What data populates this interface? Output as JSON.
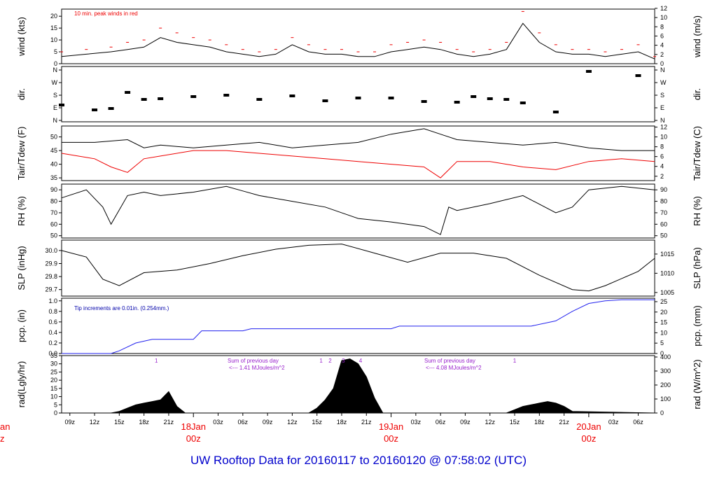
{
  "title": "UW Rooftop Data for 20160117  to  20160120 @ 07:58:02  (UTC)",
  "x_ticks": [
    "09z",
    "12z",
    "15z",
    "18z",
    "21z",
    "03z",
    "06z",
    "09z",
    "12z",
    "15z",
    "18z",
    "21z",
    "03z",
    "06z",
    "09z",
    "12z",
    "15z",
    "18z",
    "21z",
    "03z",
    "06z"
  ],
  "day_labels": [
    {
      "day": "18Jan",
      "hour": "00z"
    },
    {
      "day": "19Jan",
      "hour": "00z"
    },
    {
      "day": "20Jan",
      "hour": "00z"
    }
  ],
  "edge_labels": {
    "day_fragment": "an",
    "hour_fragment": "z"
  },
  "colors": {
    "black": "#000000",
    "red": "#ee0000",
    "blue": "#2222ee",
    "purple": "#9922cc",
    "title": "#0000cc"
  },
  "panels": {
    "wind": {
      "ylabel_left": "wind (kts)",
      "ylabel_right": "wind (m/s)",
      "left_ticks": [
        "0",
        "5",
        "10",
        "15",
        "20"
      ],
      "right_ticks": [
        "0",
        "2",
        "4",
        "6",
        "8",
        "10",
        "12"
      ],
      "note": "10 min. peak winds in red"
    },
    "dir": {
      "ylabel_left": "dir.",
      "ylabel_right": "dir.",
      "ticks": [
        "N",
        "E",
        "S",
        "W",
        "N"
      ]
    },
    "temp": {
      "ylabel_left": "Tair/Tdew (F)",
      "ylabel_right": "Tair/Tdew (C)",
      "left_ticks": [
        "35",
        "40",
        "45",
        "50"
      ],
      "right_ticks": [
        "2",
        "4",
        "6",
        "8",
        "10",
        "12"
      ]
    },
    "rh": {
      "ylabel_left": "RH (%)",
      "ylabel_right": "RH (%)",
      "ticks": [
        "50",
        "60",
        "70",
        "80",
        "90"
      ]
    },
    "slp": {
      "ylabel_left": "SLP (inHg)",
      "ylabel_right": "SLP (hPa)",
      "left_ticks": [
        "29.7",
        "29.8",
        "29.9",
        "30.0"
      ],
      "right_ticks": [
        "1005",
        "1010",
        "1015"
      ]
    },
    "pcp": {
      "ylabel_left": "pcp. (in)",
      "ylabel_right": "pcp. (mm)",
      "left_ticks": [
        "0.0",
        "0.2",
        "0.4",
        "0.6",
        "0.8",
        "1.0"
      ],
      "right_ticks": [
        "0",
        "5",
        "10",
        "15",
        "20",
        "25"
      ],
      "note": "Tip increments are 0.01in. (0.254mm.)"
    },
    "rad": {
      "ylabel_left": "rad(Lgly/hr)",
      "ylabel_right": "rad (W/m^2)",
      "left_ticks": [
        "0",
        "5",
        "10",
        "15",
        "20",
        "25",
        "30",
        "35"
      ],
      "right_ticks": [
        "0",
        "100",
        "200",
        "300",
        "400"
      ],
      "markers": [
        "1",
        "1",
        "2",
        "3",
        "4",
        "1"
      ],
      "notes": [
        {
          "line1": "Sum of previous day",
          "line2": "<--- 1.41 MJoules/m^2"
        },
        {
          "line1": "Sum of previous day",
          "line2": "<--- 4.08 MJoules/m^2"
        }
      ]
    }
  },
  "chart_data": [
    {
      "type": "line",
      "title": "",
      "ylabel": "wind (kts)",
      "y2label": "wind (m/s)",
      "ylim": [
        0,
        23
      ],
      "x_units": "hours since 20160117 08z",
      "series": [
        {
          "name": "",
          "x": [
            0,
            3,
            6,
            8,
            10,
            12,
            14,
            16,
            18,
            20,
            22,
            24,
            26,
            28,
            30,
            32,
            34,
            36,
            38,
            40,
            42,
            44,
            46,
            48,
            50,
            52,
            54,
            56,
            58,
            60,
            62,
            64,
            66,
            68,
            70,
            72
          ],
          "values": [
            3,
            4,
            5,
            6,
            7,
            11,
            9,
            8,
            7,
            5,
            4,
            3,
            4,
            8,
            5,
            4,
            4,
            3,
            3,
            5,
            6,
            7,
            6,
            4,
            3,
            4,
            6,
            17,
            9,
            5,
            4,
            4,
            3,
            4,
            5,
            2
          ]
        },
        {
          "name": "10 min. peak winds in red",
          "x": [
            0,
            3,
            6,
            8,
            10,
            12,
            14,
            16,
            18,
            20,
            22,
            24,
            26,
            28,
            30,
            32,
            34,
            36,
            38,
            40,
            42,
            44,
            46,
            48,
            50,
            52,
            54,
            56,
            58,
            60,
            62,
            64,
            66,
            68,
            70,
            72
          ],
          "values": [
            5,
            6,
            7,
            9,
            10,
            15,
            13,
            11,
            10,
            8,
            6,
            5,
            6,
            11,
            8,
            6,
            6,
            5,
            5,
            8,
            9,
            10,
            9,
            6,
            5,
            6,
            9,
            22,
            13,
            8,
            6,
            6,
            5,
            6,
            8,
            3
          ]
        }
      ]
    },
    {
      "type": "scatter",
      "title": "",
      "ylabel": "dir.",
      "ylim": [
        0,
        360
      ],
      "series": [
        {
          "name": "",
          "x": [
            0,
            4,
            6,
            8,
            10,
            12,
            16,
            20,
            24,
            28,
            32,
            36,
            40,
            44,
            48,
            50,
            52,
            54,
            56,
            60,
            64,
            70
          ],
          "values": [
            110,
            75,
            85,
            200,
            150,
            155,
            170,
            180,
            150,
            175,
            140,
            160,
            160,
            135,
            130,
            170,
            155,
            150,
            125,
            60,
            350,
            320
          ]
        }
      ]
    },
    {
      "type": "line",
      "title": "",
      "ylabel": "Tair/Tdew (F)",
      "y2label": "Tair/Tdew (C)",
      "ylim": [
        34,
        54
      ],
      "series": [
        {
          "name": "Tair",
          "x": [
            0,
            4,
            8,
            10,
            12,
            16,
            20,
            24,
            28,
            32,
            36,
            40,
            44,
            46,
            48,
            52,
            56,
            60,
            64,
            68,
            72
          ],
          "values": [
            48,
            48,
            49,
            46,
            47,
            46,
            47,
            48,
            46,
            47,
            48,
            51,
            53,
            51,
            49,
            48,
            47,
            48,
            46,
            45,
            45
          ]
        },
        {
          "name": "Tdew",
          "x": [
            0,
            4,
            6,
            8,
            10,
            12,
            16,
            20,
            24,
            28,
            32,
            36,
            40,
            44,
            46,
            48,
            52,
            56,
            60,
            64,
            68,
            72
          ],
          "values": [
            44,
            42,
            39,
            37,
            42,
            43,
            45,
            45,
            44,
            43,
            42,
            41,
            40,
            39,
            35,
            41,
            41,
            39,
            38,
            41,
            42,
            41
          ]
        }
      ]
    },
    {
      "type": "line",
      "title": "",
      "ylabel": "RH (%)",
      "ylim": [
        48,
        95
      ],
      "series": [
        {
          "name": "",
          "x": [
            0,
            3,
            5,
            6,
            8,
            10,
            12,
            16,
            20,
            22,
            24,
            28,
            32,
            36,
            40,
            44,
            46,
            47,
            48,
            52,
            56,
            60,
            62,
            64,
            68,
            72
          ],
          "values": [
            83,
            90,
            75,
            60,
            85,
            88,
            85,
            88,
            93,
            89,
            85,
            80,
            75,
            65,
            62,
            58,
            51,
            75,
            72,
            78,
            85,
            70,
            75,
            90,
            93,
            90
          ]
        }
      ]
    },
    {
      "type": "line",
      "title": "",
      "ylabel": "SLP (inHg)",
      "y2label": "SLP (hPa)",
      "ylim": [
        29.65,
        30.08
      ],
      "series": [
        {
          "name": "",
          "x": [
            0,
            3,
            5,
            7,
            10,
            14,
            18,
            22,
            26,
            30,
            34,
            38,
            42,
            46,
            50,
            54,
            58,
            62,
            64,
            66,
            70,
            72
          ],
          "values": [
            30.0,
            29.95,
            29.78,
            29.73,
            29.83,
            29.85,
            29.9,
            29.96,
            30.01,
            30.04,
            30.05,
            29.98,
            29.91,
            29.98,
            29.98,
            29.94,
            29.81,
            29.7,
            29.69,
            29.73,
            29.84,
            29.94
          ]
        }
      ]
    },
    {
      "type": "line",
      "title": "",
      "ylabel": "pcp. (in)",
      "y2label": "pcp. (mm)",
      "ylim": [
        0,
        1.05
      ],
      "series": [
        {
          "name": "",
          "x": [
            0,
            6,
            7,
            9,
            11,
            16,
            17,
            22,
            23,
            28,
            34,
            40,
            41,
            46,
            52,
            57,
            60,
            62,
            64,
            66,
            68,
            72
          ],
          "values": [
            0,
            0,
            0.05,
            0.2,
            0.27,
            0.27,
            0.43,
            0.43,
            0.47,
            0.47,
            0.47,
            0.47,
            0.52,
            0.52,
            0.52,
            0.52,
            0.62,
            0.8,
            0.95,
            1.0,
            1.02,
            1.02
          ]
        }
      ]
    },
    {
      "type": "area",
      "title": "",
      "ylabel": "rad(Lgly/hr)",
      "y2label": "rad (W/m^2)",
      "ylim": [
        0,
        35
      ],
      "series": [
        {
          "name": "",
          "x": [
            0,
            6,
            7,
            8,
            9,
            10,
            11,
            12,
            13,
            14,
            15,
            30,
            31,
            32,
            33,
            34,
            35,
            36,
            37,
            38,
            39,
            54,
            55,
            56,
            57,
            58,
            59,
            60,
            61,
            62,
            72
          ],
          "values": [
            0,
            0,
            1,
            3,
            5,
            6,
            7,
            8,
            13,
            4,
            0,
            0,
            3,
            8,
            15,
            32,
            33,
            30,
            22,
            9,
            0,
            0,
            2,
            4,
            5,
            6,
            7,
            6,
            4,
            1,
            0
          ]
        }
      ]
    }
  ]
}
